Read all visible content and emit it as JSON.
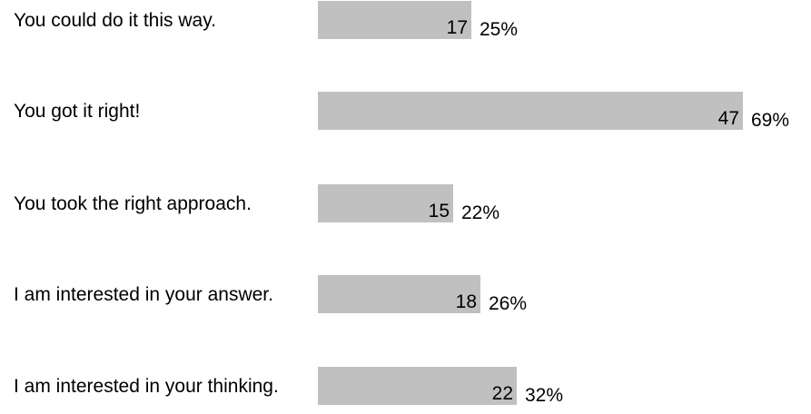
{
  "chart_data": {
    "type": "bar",
    "orientation": "horizontal",
    "categories": [
      "You could do it this way.",
      "You got it right!",
      "You took the right approach.",
      "I am interested in your answer.",
      "I am interested in your thinking."
    ],
    "values": [
      17,
      47,
      15,
      18,
      22
    ],
    "percent_labels": [
      "25%",
      "69%",
      "22%",
      "26%",
      "32%"
    ],
    "bar_color": "#c0c0c0",
    "grid": false,
    "legend": "none"
  }
}
